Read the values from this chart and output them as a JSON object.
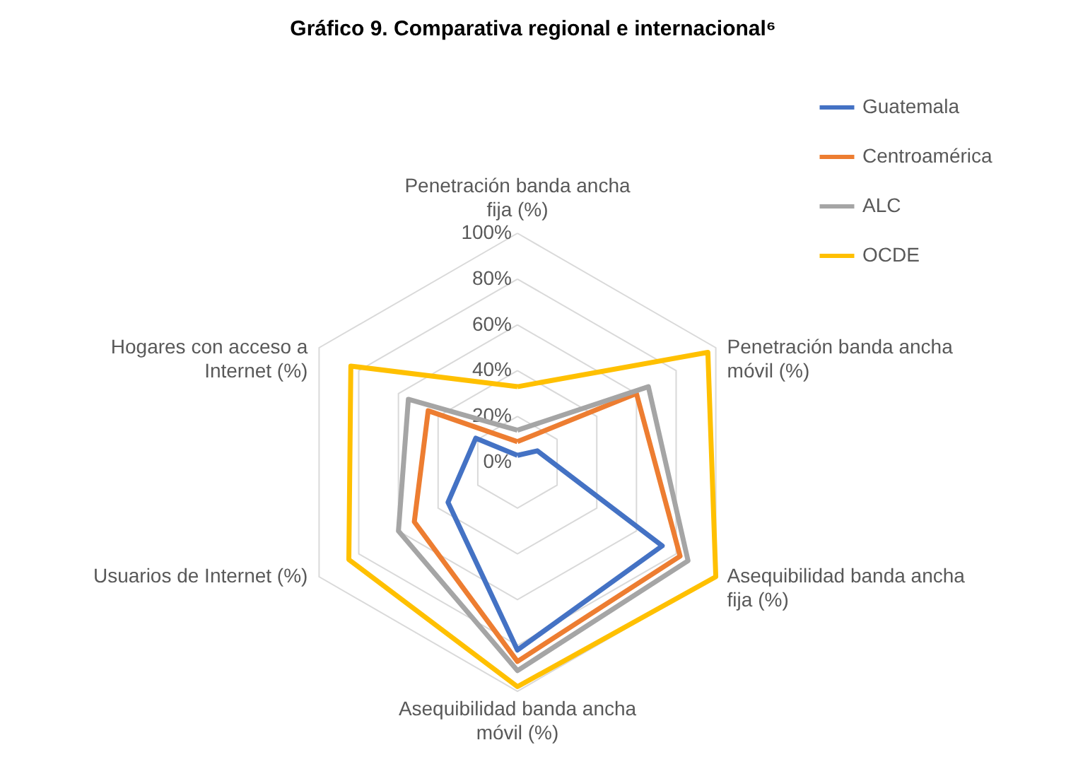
{
  "chart_data": {
    "type": "radar",
    "title": "Gráfico 9. Comparativa regional e internacional⁶",
    "categories": [
      "Penetración banda ancha fija (%)",
      "Penetración banda ancha móvil (%)",
      "Asequibilidad banda ancha fija (%)",
      "Asequibilidad banda ancha móvil (%)",
      "Usuarios de Internet (%)",
      "Hogares con acceso a Internet (%)"
    ],
    "series": [
      {
        "name": "Guatemala",
        "color": "#4472c4",
        "values": [
          3,
          10,
          73,
          82,
          35,
          21
        ]
      },
      {
        "name": "Centroamérica",
        "color": "#ed7d31",
        "values": [
          9,
          60,
          82,
          87,
          52,
          45
        ]
      },
      {
        "name": "ALC",
        "color": "#a5a5a5",
        "values": [
          14,
          66,
          86,
          91,
          60,
          55
        ]
      },
      {
        "name": "OCDE",
        "color": "#ffc000",
        "values": [
          33,
          96,
          100,
          98,
          85,
          84
        ]
      }
    ],
    "ylim": [
      0,
      100
    ],
    "yticks": [
      {
        "value": 0,
        "label": "0%"
      },
      {
        "value": 20,
        "label": "20%"
      },
      {
        "value": 40,
        "label": "40%"
      },
      {
        "value": 60,
        "label": "60%"
      },
      {
        "value": 80,
        "label": "80%"
      },
      {
        "value": 100,
        "label": "100%"
      }
    ],
    "grid": true,
    "legend": "top right"
  }
}
